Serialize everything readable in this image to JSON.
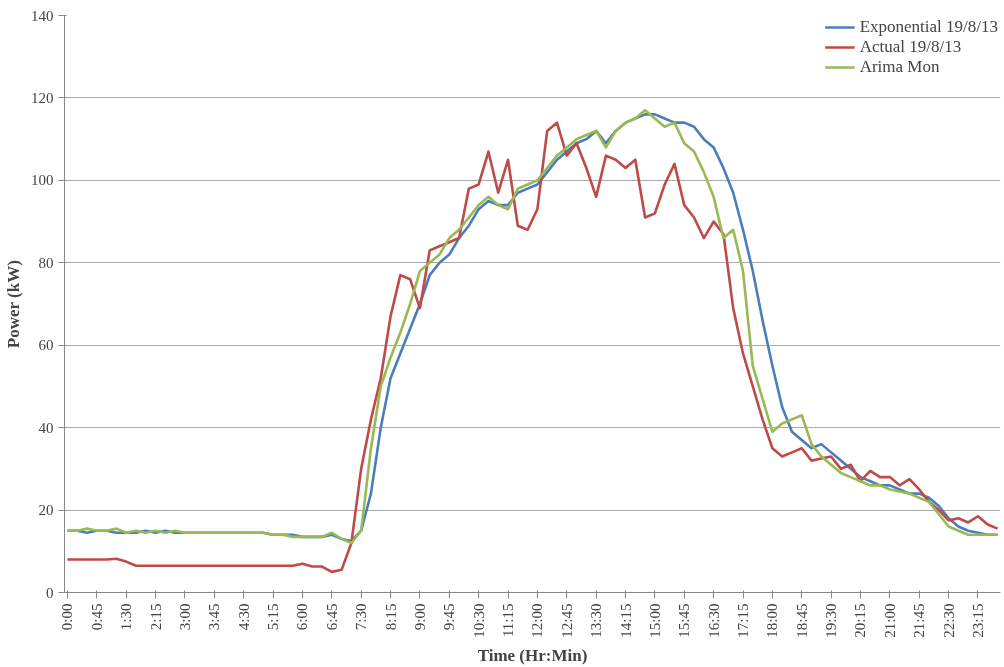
{
  "chart_data": {
    "type": "line",
    "xlabel": "Time (Hr:Min)",
    "ylabel": "Power (kW)",
    "categories": [
      "0:00",
      null,
      null,
      "0:45",
      null,
      null,
      "1:30",
      null,
      null,
      "2:15",
      null,
      null,
      "3:00",
      null,
      null,
      "3:45",
      null,
      null,
      "4:30",
      null,
      null,
      "5:15",
      null,
      null,
      "6:00",
      null,
      null,
      "6:45",
      null,
      null,
      "7:30",
      null,
      null,
      "8:15",
      null,
      null,
      "9:00",
      null,
      null,
      "9:45",
      null,
      null,
      "10:30",
      null,
      null,
      "11:15",
      null,
      null,
      "12:00",
      null,
      null,
      "12:45",
      null,
      null,
      "13:30",
      null,
      null,
      "14:15",
      null,
      null,
      "15:00",
      null,
      null,
      "15:45",
      null,
      null,
      "16:30",
      null,
      null,
      "17:15",
      null,
      null,
      "18:00",
      null,
      null,
      "18:45",
      null,
      null,
      "19:30",
      null,
      null,
      "20:15",
      null,
      null,
      "21:00",
      null,
      null,
      "21:45",
      null,
      null,
      "22:30",
      null,
      null,
      "23:15",
      null,
      null
    ],
    "series": [
      {
        "name": "Exponential 19/8/13",
        "color": "#4a7ebb",
        "values": [
          15,
          15,
          14.5,
          15,
          15,
          14.5,
          14.5,
          14.5,
          15,
          14.5,
          15,
          14.5,
          14.5,
          14.5,
          14.5,
          14.5,
          14.5,
          14.5,
          14.5,
          14.5,
          14.5,
          14,
          14,
          14,
          13.5,
          13.5,
          13.5,
          14,
          13,
          12.5,
          15,
          24,
          40,
          52,
          58,
          64,
          70,
          77,
          80,
          82,
          86,
          89,
          93,
          95,
          94,
          94,
          97,
          98,
          99,
          102,
          105,
          107,
          109,
          110,
          112,
          109,
          112,
          114,
          115,
          116,
          116,
          115,
          114,
          114,
          113,
          110,
          108,
          103,
          97,
          88,
          78,
          66,
          55,
          45,
          39,
          37,
          35,
          36,
          34,
          32,
          30,
          28,
          27,
          26,
          26,
          25,
          24,
          24,
          23,
          21,
          18,
          16,
          15,
          14.5,
          14,
          14
        ]
      },
      {
        "name": "Actual 19/8/13",
        "color": "#be4b48",
        "values": [
          8,
          8,
          8,
          8,
          8,
          8.2,
          7.5,
          6.5,
          6.5,
          6.5,
          6.5,
          6.5,
          6.5,
          6.5,
          6.5,
          6.5,
          6.5,
          6.5,
          6.5,
          6.5,
          6.5,
          6.5,
          6.5,
          6.5,
          7,
          6.3,
          6.3,
          5,
          5.5,
          12,
          30,
          42,
          52,
          67,
          77,
          76,
          69,
          83,
          84,
          85,
          86,
          98,
          99,
          107,
          97,
          105,
          89,
          88,
          93,
          112,
          114,
          106,
          109,
          103,
          96,
          106,
          105,
          103,
          105,
          91,
          92,
          99,
          104,
          94,
          91,
          86,
          90,
          87,
          69,
          58,
          50,
          42,
          35,
          33,
          34,
          35,
          32,
          32.5,
          33,
          30,
          31,
          27,
          29.5,
          28,
          28,
          26,
          27.5,
          25,
          22,
          20,
          17.5,
          18,
          17,
          18.5,
          16.5,
          15.5
        ]
      },
      {
        "name": "Arima Mon",
        "color": "#98b954",
        "values": [
          15,
          15,
          15.5,
          15,
          15,
          15.5,
          14.5,
          15,
          14.5,
          15,
          14.5,
          15,
          14.5,
          14.5,
          14.5,
          14.5,
          14.5,
          14.5,
          14.5,
          14.5,
          14.5,
          14,
          14,
          13.5,
          13.5,
          13.5,
          13.5,
          14.5,
          13,
          12,
          15,
          35,
          50,
          57,
          63,
          70,
          78,
          80,
          82,
          86,
          88,
          91,
          94,
          96,
          94,
          93,
          98,
          99,
          100,
          103,
          106,
          108,
          110,
          111,
          112,
          108,
          112,
          114,
          115,
          117,
          115,
          113,
          114,
          109,
          107,
          102,
          96,
          86,
          88,
          78,
          55,
          47,
          39,
          41,
          42,
          43,
          36,
          33,
          31,
          29,
          28,
          27,
          26,
          26,
          25,
          24.5,
          24,
          23,
          22,
          19,
          16,
          15,
          14,
          14,
          14,
          14
        ]
      }
    ],
    "ylim": [
      0,
      140
    ],
    "yticks": [
      0,
      20,
      40,
      60,
      80,
      100,
      120,
      140
    ],
    "grid": "y",
    "legend": "top right",
    "marker": "none",
    "line_style": "solid"
  }
}
